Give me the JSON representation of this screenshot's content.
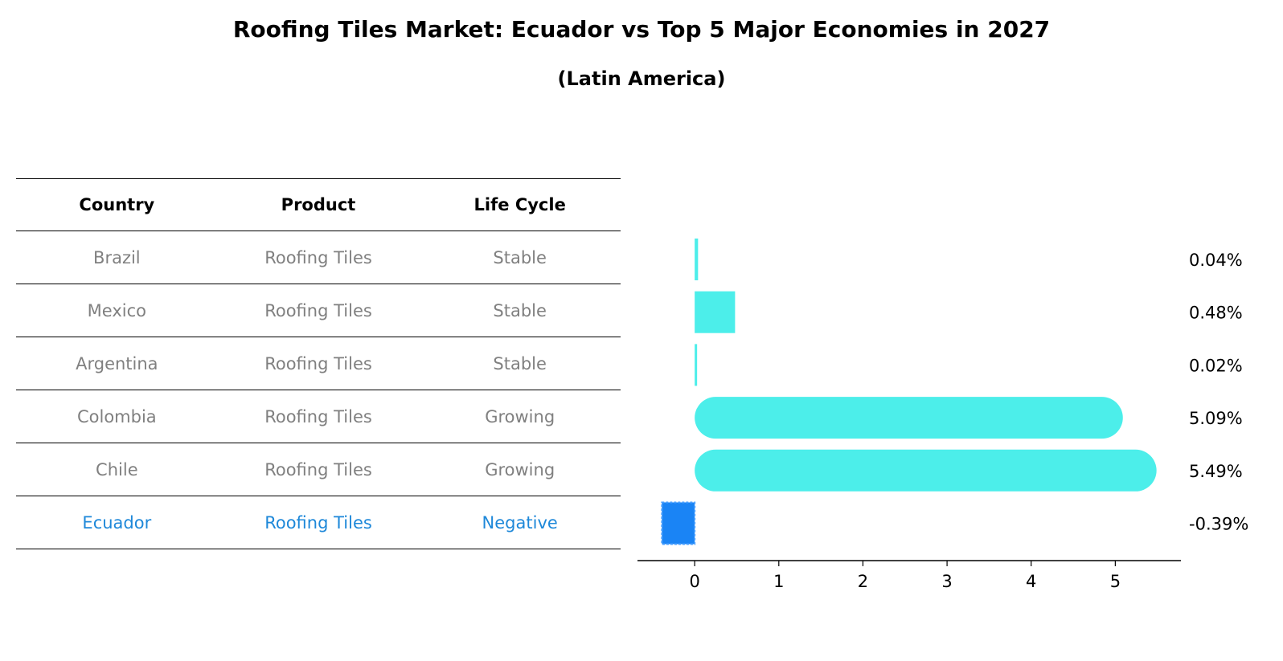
{
  "title": "Roofing Tiles Market: Ecuador vs Top 5 Major Economies in 2027",
  "subtitle": "(Latin America)",
  "table": {
    "headers": [
      "Country",
      "Product",
      "Life Cycle"
    ],
    "rows": [
      {
        "country": "Brazil",
        "product": "Roofing Tiles",
        "life_cycle": "Stable"
      },
      {
        "country": "Mexico",
        "product": "Roofing Tiles",
        "life_cycle": "Stable"
      },
      {
        "country": "Argentina",
        "product": "Roofing Tiles",
        "life_cycle": "Stable"
      },
      {
        "country": "Colombia",
        "product": "Roofing Tiles",
        "life_cycle": "Growing"
      },
      {
        "country": "Chile",
        "product": "Roofing Tiles",
        "life_cycle": "Growing"
      },
      {
        "country": "Ecuador",
        "product": "Roofing Tiles",
        "life_cycle": "Negative"
      }
    ],
    "highlight_row": 5
  },
  "chart_data": {
    "type": "bar",
    "orientation": "horizontal",
    "categories": [
      "Brazil",
      "Mexico",
      "Argentina",
      "Colombia",
      "Chile",
      "Ecuador"
    ],
    "values": [
      0.04,
      0.48,
      0.02,
      5.09,
      5.49,
      -0.39
    ],
    "value_labels": [
      "0.04%",
      "0.48%",
      "0.02%",
      "5.09%",
      "5.49%",
      "-0.39%"
    ],
    "xlim": [
      -0.68,
      5.78
    ],
    "xticks": [
      0,
      1,
      2,
      3,
      4,
      5
    ],
    "grid": false,
    "colors": {
      "positive": "#4ceeea",
      "negative": "#1a84f5",
      "axis": "#000000",
      "table_text": "#808080",
      "highlight_text": "#1e88d9"
    }
  }
}
